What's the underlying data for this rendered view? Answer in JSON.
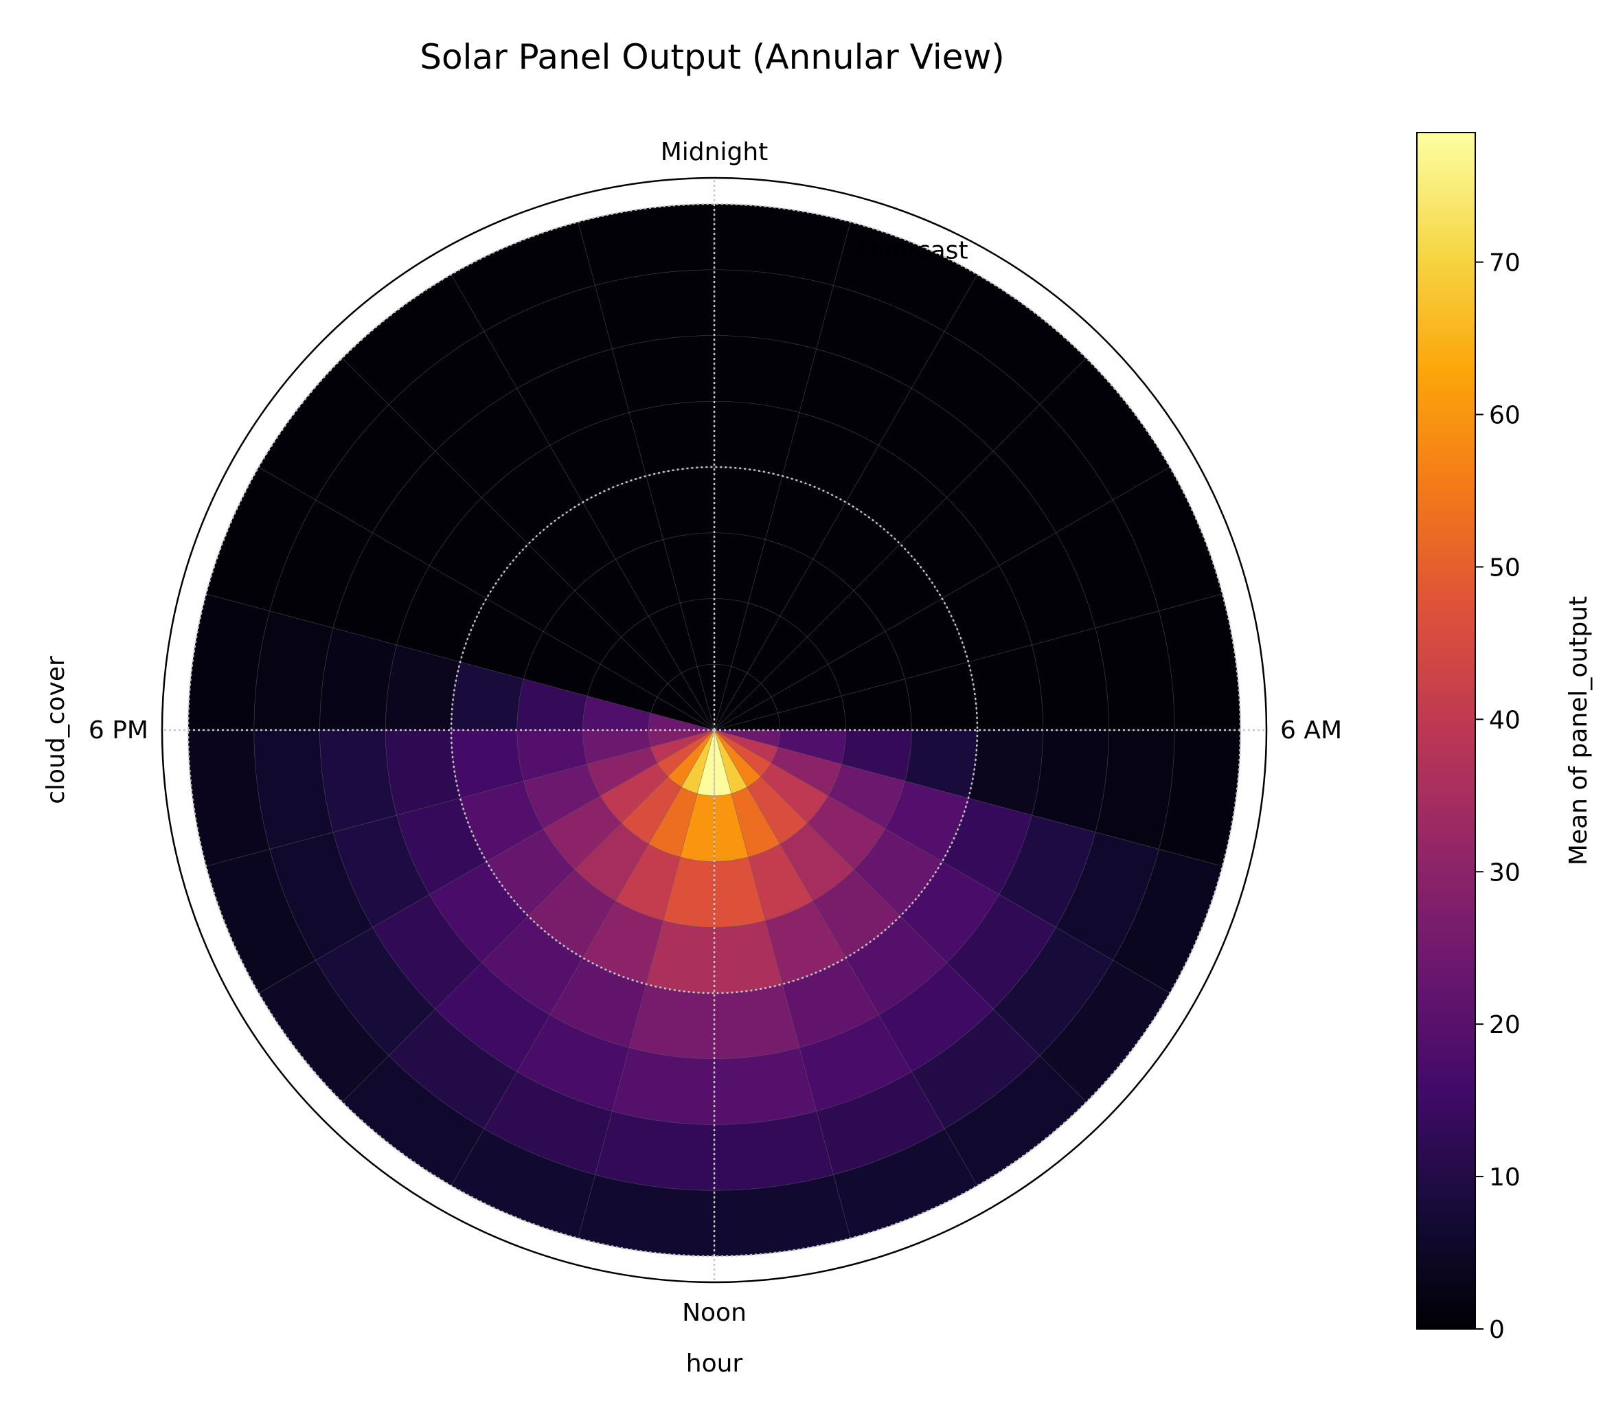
{
  "chart_data": {
    "type": "heatmap",
    "subtype": "polar-annular",
    "title": "Solar Panel Output (Annular View)",
    "angular_axis": {
      "label": "hour",
      "direction": "clockwise",
      "zero_at": "top",
      "range": [
        0,
        24
      ],
      "tick_values": [
        0,
        6,
        12,
        18
      ],
      "tick_labels": [
        "Midnight",
        "6 AM",
        "Noon",
        "6 PM"
      ]
    },
    "radial_axis": {
      "label": "cloud_cover",
      "range": [
        0,
        100
      ],
      "bins": [
        0,
        12.5,
        25,
        37.5,
        50,
        62.5,
        75,
        87.5,
        100
      ],
      "tick_values": [
        50,
        100
      ],
      "tick_labels": [
        "",
        "Overcast"
      ]
    },
    "colorbar": {
      "label": "Mean of panel_output",
      "colormap": "inferno",
      "range": [
        0,
        78.5
      ],
      "ticks": [
        0,
        10,
        20,
        30,
        40,
        50,
        60,
        70
      ],
      "tick_labels": [
        "0",
        "10",
        "20",
        "30",
        "40",
        "50",
        "60",
        "70"
      ]
    },
    "hour_bins": [
      6.5,
      7.5,
      8.5,
      9.5,
      10.5,
      11.5,
      12.5,
      13.5,
      14.5,
      15.5,
      16.5,
      17.5,
      18.5
    ],
    "hour_bin_width": 1,
    "values": [
      [
        24.0,
        18.5,
        13.2,
        8.5,
        3.8,
        2.8,
        2.0,
        1.5
      ],
      [
        39.0,
        30.0,
        24.0,
        19.0,
        13.5,
        9.5,
        6.0,
        4.0
      ],
      [
        47.0,
        40.0,
        30.0,
        23.0,
        17.0,
        12.5,
        8.0,
        5.0
      ],
      [
        57.0,
        46.0,
        35.0,
        26.5,
        19.5,
        15.0,
        10.0,
        6.0
      ],
      [
        69.0,
        53.0,
        41.0,
        30.0,
        22.0,
        17.0,
        12.0,
        6.5
      ],
      [
        78.0,
        60.0,
        47.0,
        36.0,
        26.0,
        19.5,
        13.0,
        6.5
      ],
      [
        78.0,
        60.0,
        47.0,
        36.0,
        26.0,
        19.5,
        13.0,
        6.5
      ],
      [
        69.0,
        53.0,
        41.0,
        30.0,
        22.0,
        17.0,
        12.0,
        6.5
      ],
      [
        57.0,
        46.0,
        35.0,
        26.5,
        19.5,
        15.0,
        10.0,
        6.0
      ],
      [
        47.0,
        40.0,
        30.0,
        23.0,
        17.0,
        12.5,
        8.0,
        5.0
      ],
      [
        39.0,
        30.0,
        24.0,
        19.0,
        13.5,
        9.5,
        6.0,
        4.0
      ],
      [
        28.0,
        24.0,
        19.0,
        16.0,
        12.0,
        9.0,
        6.0,
        3.5
      ],
      [
        24.0,
        18.5,
        13.2,
        8.5,
        3.8,
        2.8,
        2.0,
        1.5
      ]
    ],
    "night_value": 0.5,
    "grid": true,
    "colors": {
      "background": "#ffffff",
      "cell_edge": "#5a5a5a",
      "grid": "#c8c8c8"
    }
  }
}
